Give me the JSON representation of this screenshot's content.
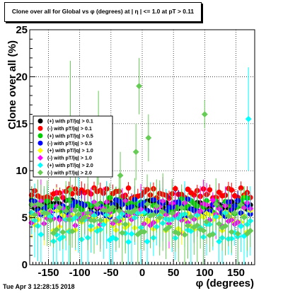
{
  "chart_data": {
    "type": "scatter",
    "title": "Clone  over all for Global vs φ (degrees) at | η | <= 1.0 at pT > 0.11",
    "xlabel": "φ (degrees)",
    "ylabel": "Clone  over all (%)",
    "xlim": [
      -180,
      180
    ],
    "ylim": [
      0,
      25
    ],
    "x_ticks": [
      -150,
      -100,
      -50,
      0,
      50,
      100,
      150
    ],
    "y_ticks": [
      0,
      5,
      10,
      15,
      20,
      25
    ],
    "grid": true,
    "legend_position": "left",
    "series": [
      {
        "name": "(+) with pT/|q| > 0.1",
        "color": "#000000",
        "marker": "circle",
        "typical": 6.4
      },
      {
        "name": "(-) with pT/|q| > 0.1",
        "color": "#ff0000",
        "marker": "circle",
        "typical": 7.6
      },
      {
        "name": "(+) with pT/|q| > 0.5",
        "color": "#00cc00",
        "marker": "circle",
        "typical": 6.3
      },
      {
        "name": "(-) with pT/|q| > 0.5",
        "color": "#0000ff",
        "marker": "circle",
        "typical": 6.0
      },
      {
        "name": "(+) with pT/|q| > 1.0",
        "color": "#ffff00",
        "marker": "diamond",
        "typical": 4.6
      },
      {
        "name": "(-) with pT/|q| > 1.0",
        "color": "#ff00ff",
        "marker": "diamond",
        "typical": 5.5
      },
      {
        "name": "(+) with pT/|q| > 2.0",
        "color": "#00ffff",
        "marker": "diamond",
        "typical": 4.0
      },
      {
        "name": "(-) with pT/|q| > 2.0",
        "color": "#66cc55",
        "marker": "diamond",
        "typical": 4.8
      }
    ],
    "highlights": [
      {
        "series": 7,
        "x": 100,
        "y": 16.0,
        "err": 1.5
      },
      {
        "series": 6,
        "x": 170,
        "y": 15.5,
        "err": 5.5
      },
      {
        "series": 7,
        "x": 10,
        "y": 13.5,
        "err": 2.5
      },
      {
        "series": 7,
        "x": -70,
        "y": 13.5,
        "err": 5.0
      },
      {
        "series": 7,
        "x": -5,
        "y": 19.0,
        "err": 3.0
      },
      {
        "series": 7,
        "x": -115,
        "y": 8.0,
        "err": 13.7
      },
      {
        "series": 7,
        "x": -35,
        "y": 9.5,
        "err": 2.5
      },
      {
        "series": 7,
        "x": -10,
        "y": 12.0,
        "err": 3.0
      }
    ]
  },
  "footer": "Tue Apr  3 12:28:15 2018"
}
